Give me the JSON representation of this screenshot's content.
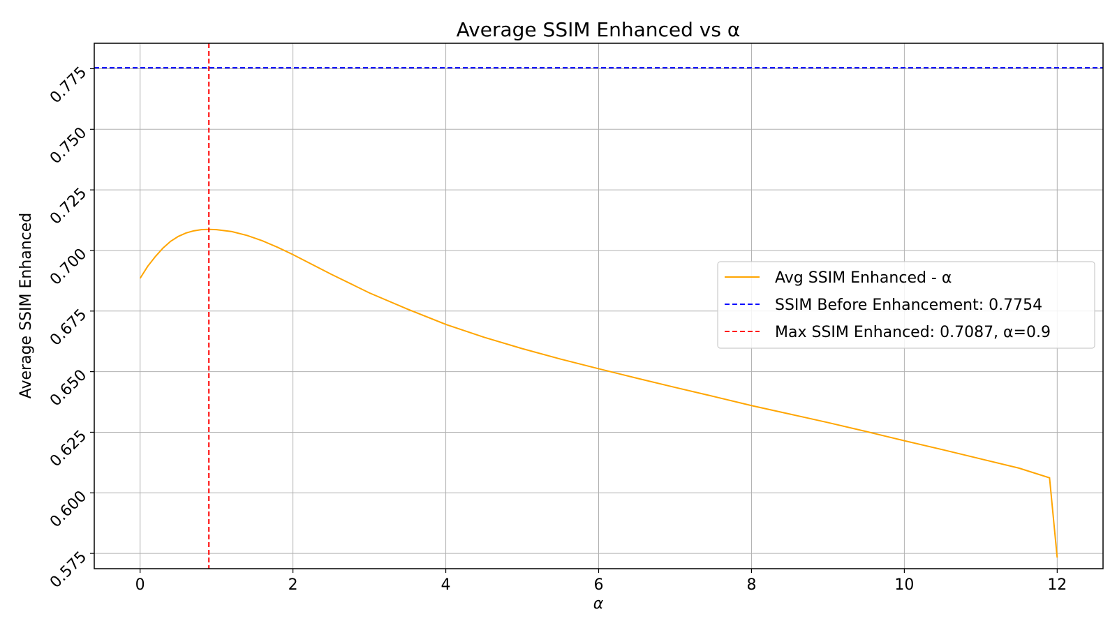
{
  "chart_data": {
    "type": "line",
    "title": "Average SSIM Enhanced vs α",
    "xlabel": "α",
    "ylabel": "Average SSIM Enhanced",
    "xlim": [
      -0.6,
      12.6
    ],
    "ylim": [
      0.5687,
      0.7855
    ],
    "x_ticks": [
      0,
      2,
      4,
      6,
      8,
      10,
      12
    ],
    "x_tick_labels": [
      "0",
      "2",
      "4",
      "6",
      "8",
      "10",
      "12"
    ],
    "y_ticks": [
      0.575,
      0.6,
      0.625,
      0.65,
      0.675,
      0.7,
      0.725,
      0.75,
      0.775
    ],
    "y_tick_labels": [
      "0.575",
      "0.600",
      "0.625",
      "0.650",
      "0.675",
      "0.700",
      "0.725",
      "0.750",
      "0.775"
    ],
    "grid": true,
    "legend_position": "center-right",
    "series": [
      {
        "name": "Avg SSIM Enhanced - α",
        "style": "solid",
        "color": "#ffa500",
        "x": [
          0,
          0.1,
          0.2,
          0.3,
          0.4,
          0.5,
          0.6,
          0.7,
          0.8,
          0.9,
          1.0,
          1.2,
          1.4,
          1.6,
          1.8,
          2.0,
          2.5,
          3.0,
          3.5,
          4.0,
          4.5,
          5.0,
          5.5,
          6.0,
          6.5,
          7.0,
          7.5,
          8.0,
          8.5,
          9.0,
          9.5,
          10.0,
          10.5,
          11.0,
          11.5,
          11.9,
          12.0
        ],
        "y": [
          0.6885,
          0.6935,
          0.6975,
          0.701,
          0.7038,
          0.7058,
          0.7072,
          0.7081,
          0.7086,
          0.7087,
          0.7086,
          0.7078,
          0.7062,
          0.704,
          0.7013,
          0.6983,
          0.6902,
          0.6825,
          0.6758,
          0.6695,
          0.6642,
          0.6595,
          0.6552,
          0.6512,
          0.6473,
          0.6435,
          0.6398,
          0.636,
          0.6325,
          0.629,
          0.6253,
          0.6215,
          0.6178,
          0.614,
          0.6102,
          0.6062,
          0.5733
        ]
      },
      {
        "name": "SSIM Before Enhancement: 0.7754",
        "style": "dashed",
        "orientation": "horizontal",
        "color": "#0000ff",
        "y": 0.7754
      },
      {
        "name": "Max SSIM Enhanced: 0.7087, α=0.9",
        "style": "dashed",
        "orientation": "vertical",
        "color": "#ff0000",
        "x": 0.9
      }
    ]
  }
}
